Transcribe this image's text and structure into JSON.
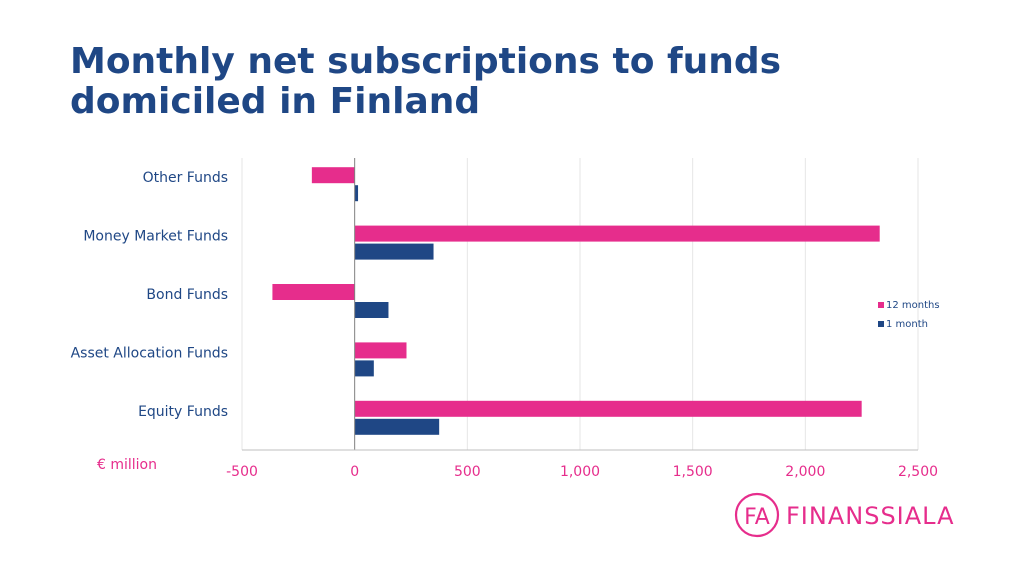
{
  "title": {
    "line1": "Monthly net subscriptions to funds",
    "line2": "domiciled in Finland"
  },
  "colors": {
    "title": "#1f4785",
    "series_12m": "#e62d8c",
    "series_1m": "#1f4785",
    "tick": "#e62d8c",
    "grid": "#e6e6e6",
    "axis": "#808080"
  },
  "logo": {
    "mark": "FA",
    "text": "FINANSSIALA"
  },
  "chart_data": {
    "type": "bar",
    "orientation": "horizontal",
    "categories": [
      "Other Funds",
      "Money Market Funds",
      "Bond Funds",
      "Asset Allocation Funds",
      "Equity Funds"
    ],
    "series": [
      {
        "name": "12 months",
        "values": [
          -190,
          2330,
          -365,
          230,
          2250
        ]
      },
      {
        "name": "1 month",
        "values": [
          15,
          350,
          150,
          85,
          375
        ]
      }
    ],
    "xlim": [
      -500,
      2500
    ],
    "xticks": [
      -500,
      0,
      500,
      1000,
      1500,
      2000,
      2500
    ],
    "xtick_labels": [
      "-500",
      "0",
      "500",
      "1,000",
      "1,500",
      "2,000",
      "2,500"
    ],
    "unit_label": "€ million",
    "grid": true,
    "legend": "right"
  }
}
